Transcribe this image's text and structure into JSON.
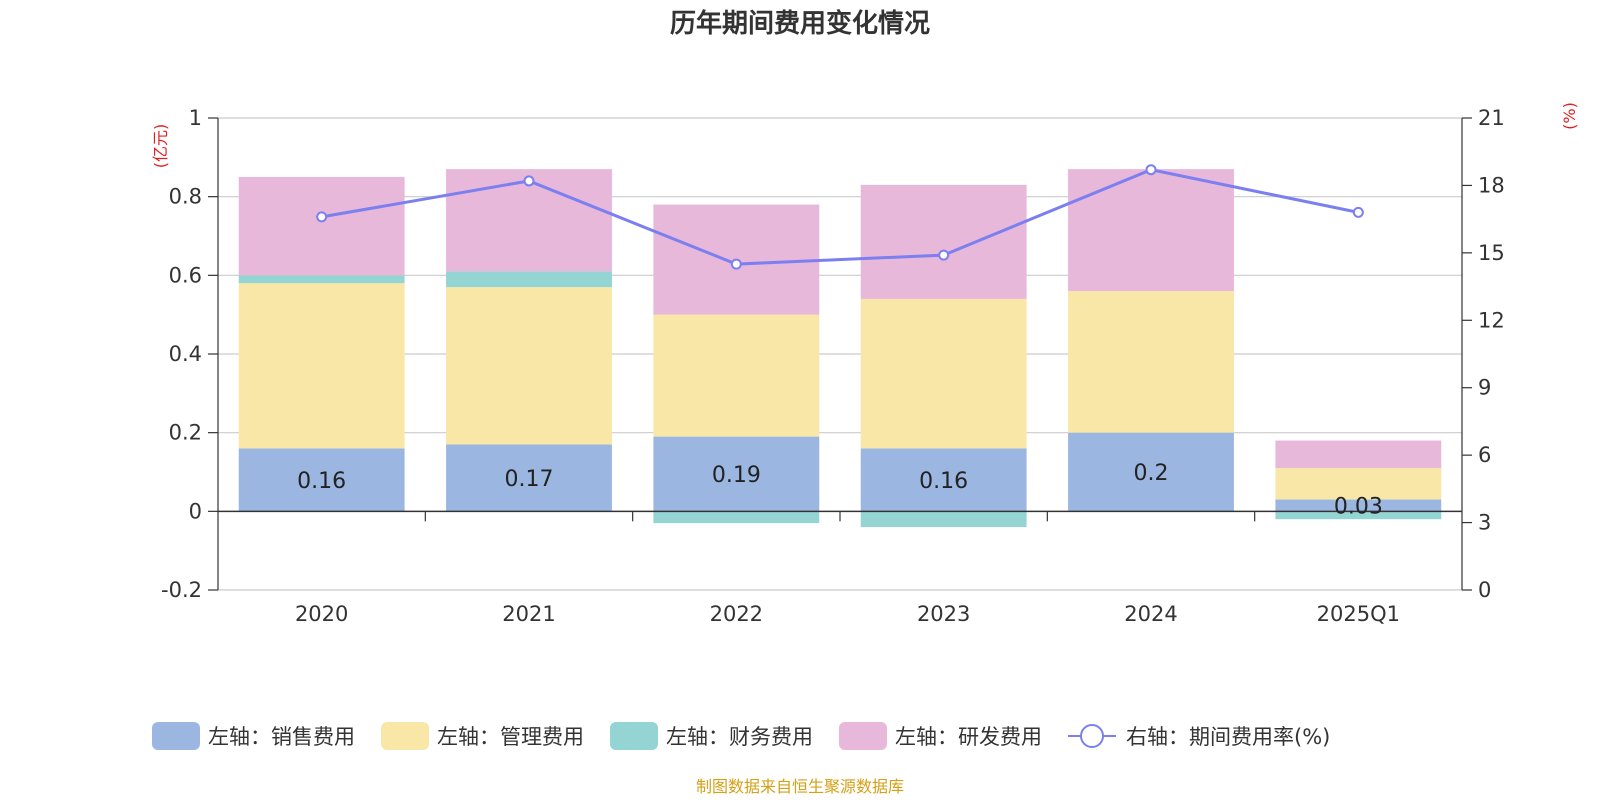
{
  "chart_data": {
    "type": "bar",
    "stacked": true,
    "title": "历年期间费用变化情况",
    "categories": [
      "2020",
      "2021",
      "2022",
      "2023",
      "2024",
      "2025Q1"
    ],
    "y_left": {
      "unit_label": "(亿元)",
      "range": [
        -0.2,
        1
      ],
      "ticks": [
        "-0.2",
        "0",
        "0.2",
        "0.4",
        "0.6",
        "0.8",
        "1"
      ],
      "tick_values": [
        -0.2,
        0,
        0.2,
        0.4,
        0.6,
        0.8,
        1
      ]
    },
    "y_right": {
      "unit_label": "(%)",
      "range": [
        0,
        21
      ],
      "ticks": [
        "0",
        "3",
        "6",
        "9",
        "12",
        "15",
        "18",
        "21"
      ],
      "tick_values": [
        0,
        3,
        6,
        9,
        12,
        15,
        18,
        21
      ]
    },
    "grid": true,
    "legend_position": "bottom",
    "series": [
      {
        "name": "左轴：销售费用",
        "type": "bar",
        "axis": "left",
        "color": "#9bb7e1",
        "values": [
          0.16,
          0.17,
          0.19,
          0.16,
          0.2,
          0.03
        ],
        "labels": [
          "0.16",
          "0.17",
          "0.19",
          "0.16",
          "0.2",
          "0.03"
        ]
      },
      {
        "name": "左轴：管理费用",
        "type": "bar",
        "axis": "left",
        "color": "#f8e7a7",
        "values": [
          0.42,
          0.4,
          0.31,
          0.38,
          0.36,
          0.08
        ]
      },
      {
        "name": "左轴：财务费用",
        "type": "bar",
        "axis": "left",
        "color": "#94d4d2",
        "values": [
          0.02,
          0.04,
          -0.03,
          -0.04,
          0.0,
          -0.02
        ]
      },
      {
        "name": "左轴：研发费用",
        "type": "bar",
        "axis": "left",
        "color": "#e7b8d9",
        "values": [
          0.25,
          0.26,
          0.28,
          0.29,
          0.31,
          0.07
        ]
      },
      {
        "name": "右轴：期间费用率(%)",
        "type": "line",
        "axis": "right",
        "color": "#7b7ff0",
        "values": [
          16.6,
          18.2,
          14.5,
          14.9,
          18.7,
          16.8
        ]
      }
    ],
    "source_note": "制图数据来自恒生聚源数据库"
  },
  "colors": {
    "title": "#333333",
    "axis_unit": "#e02020",
    "source_note": "#d4a017"
  }
}
